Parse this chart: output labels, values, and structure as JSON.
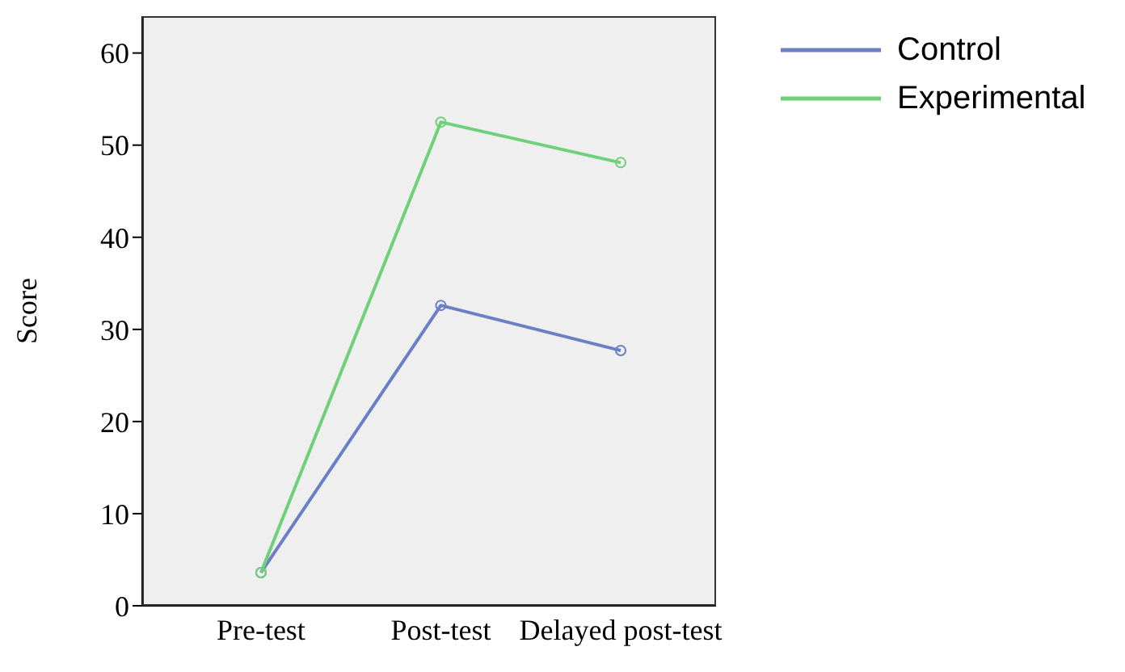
{
  "chart_data": {
    "type": "line",
    "ylabel": "Score",
    "categories": [
      "Pre-test",
      "Post-test",
      "Delayed post-test"
    ],
    "series": [
      {
        "name": "Control",
        "color": "#6b7fc4",
        "values": [
          3.6,
          32.6,
          27.7
        ]
      },
      {
        "name": "Experimental",
        "color": "#6fd07a",
        "values": [
          3.6,
          52.5,
          48.1
        ]
      }
    ],
    "ylim": [
      0,
      64
    ],
    "yticks": [
      0,
      10,
      20,
      30,
      40,
      50,
      60
    ],
    "grid": false,
    "legend": "top right",
    "marker": "circle",
    "line_style": "solid"
  }
}
